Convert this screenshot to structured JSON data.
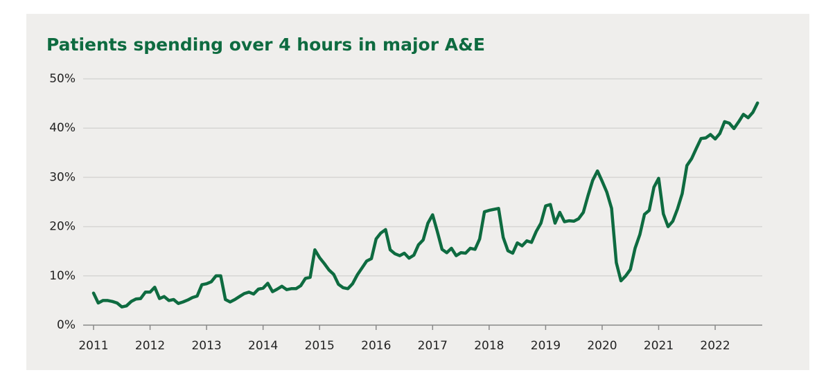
{
  "chart_data": {
    "type": "line",
    "title": "Patients spending over 4 hours in major A&E",
    "color": "#0e6b40",
    "grid": true,
    "xlim": [
      2011,
      2022.833
    ],
    "xticks": [
      2011,
      2012,
      2013,
      2014,
      2015,
      2016,
      2017,
      2018,
      2019,
      2020,
      2021,
      2022
    ],
    "ylim": [
      0,
      50
    ],
    "yticks": [
      {
        "value": 0,
        "label": "0%"
      },
      {
        "value": 10,
        "label": "10%"
      },
      {
        "value": 20,
        "label": "20%"
      },
      {
        "value": 30,
        "label": "30%"
      },
      {
        "value": 40,
        "label": "40%"
      },
      {
        "value": 50,
        "label": "50%"
      }
    ],
    "x": [
      2011,
      2011.083,
      2011.167,
      2011.25,
      2011.333,
      2011.417,
      2011.5,
      2011.583,
      2011.667,
      2011.75,
      2011.833,
      2011.917,
      2012,
      2012.083,
      2012.167,
      2012.25,
      2012.333,
      2012.417,
      2012.5,
      2012.583,
      2012.667,
      2012.75,
      2012.833,
      2012.917,
      2013,
      2013.083,
      2013.167,
      2013.25,
      2013.333,
      2013.417,
      2013.5,
      2013.583,
      2013.667,
      2013.75,
      2013.833,
      2013.917,
      2014,
      2014.083,
      2014.167,
      2014.25,
      2014.333,
      2014.417,
      2014.5,
      2014.583,
      2014.667,
      2014.75,
      2014.833,
      2014.917,
      2015,
      2015.083,
      2015.167,
      2015.25,
      2015.333,
      2015.417,
      2015.5,
      2015.583,
      2015.667,
      2015.75,
      2015.833,
      2015.917,
      2016,
      2016.083,
      2016.167,
      2016.25,
      2016.333,
      2016.417,
      2016.5,
      2016.583,
      2016.667,
      2016.75,
      2016.833,
      2016.917,
      2017,
      2017.083,
      2017.167,
      2017.25,
      2017.333,
      2017.417,
      2017.5,
      2017.583,
      2017.667,
      2017.75,
      2017.833,
      2017.917,
      2018,
      2018.083,
      2018.167,
      2018.25,
      2018.333,
      2018.417,
      2018.5,
      2018.583,
      2018.667,
      2018.75,
      2018.833,
      2018.917,
      2019,
      2019.083,
      2019.167,
      2019.25,
      2019.333,
      2019.417,
      2019.5,
      2019.583,
      2019.667,
      2019.75,
      2019.833,
      2019.917,
      2020,
      2020.083,
      2020.167,
      2020.25,
      2020.333,
      2020.417,
      2020.5,
      2020.583,
      2020.667,
      2020.75,
      2020.833,
      2020.917,
      2021,
      2021.083,
      2021.167,
      2021.25,
      2021.333,
      2021.417,
      2021.5,
      2021.583,
      2021.667,
      2021.75,
      2021.833,
      2021.917,
      2022,
      2022.083,
      2022.167,
      2022.25,
      2022.333,
      2022.417,
      2022.5,
      2022.583,
      2022.667,
      2022.75
    ],
    "values": [
      6.5,
      4.5,
      5.0,
      5.0,
      4.8,
      4.5,
      3.7,
      3.9,
      4.8,
      5.3,
      5.4,
      6.7,
      6.7,
      7.7,
      5.4,
      5.8,
      5.0,
      5.2,
      4.4,
      4.7,
      5.1,
      5.6,
      5.9,
      8.2,
      8.4,
      8.8,
      10.0,
      10.0,
      5.2,
      4.7,
      5.2,
      5.8,
      6.4,
      6.7,
      6.3,
      7.3,
      7.5,
      8.5,
      6.8,
      7.3,
      7.9,
      7.2,
      7.4,
      7.4,
      8.0,
      9.5,
      9.7,
      15.3,
      13.7,
      12.5,
      11.2,
      10.3,
      8.3,
      7.6,
      7.4,
      8.4,
      10.2,
      11.6,
      13.0,
      13.5,
      17.5,
      18.7,
      19.4,
      15.3,
      14.5,
      14.1,
      14.6,
      13.6,
      14.2,
      16.3,
      17.3,
      20.7,
      22.4,
      19.0,
      15.4,
      14.7,
      15.6,
      14.1,
      14.7,
      14.6,
      15.6,
      15.4,
      17.5,
      23.0,
      23.3,
      23.5,
      23.7,
      17.8,
      15.1,
      14.6,
      16.7,
      16.1,
      17.1,
      16.8,
      19.0,
      20.7,
      24.2,
      24.5,
      20.7,
      22.9,
      21.0,
      21.2,
      21.1,
      21.6,
      22.9,
      26.3,
      29.4,
      31.3,
      29.2,
      27.0,
      23.7,
      12.7,
      9.0,
      10.0,
      11.3,
      15.6,
      18.4,
      22.5,
      23.3,
      28.0,
      29.8,
      22.6,
      20.0,
      21.1,
      23.6,
      26.7,
      32.4,
      33.8,
      35.9,
      37.9,
      38.0,
      38.7,
      37.8,
      38.9,
      41.3,
      41.0,
      39.9,
      41.3,
      42.8,
      42.1,
      43.2,
      45.1
    ]
  }
}
